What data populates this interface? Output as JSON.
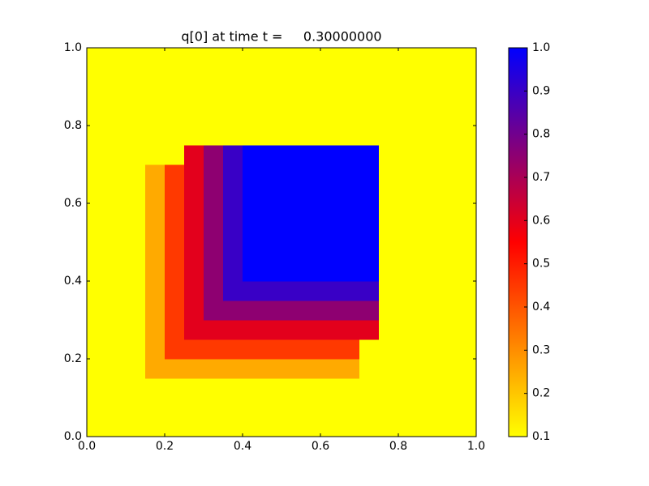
{
  "chart_data": {
    "type": "heatmap",
    "title": "q[0] at time t =     0.30000000",
    "xlim": [
      0.0,
      1.0
    ],
    "ylim": [
      0.0,
      1.0
    ],
    "xticks": [
      {
        "value": 0.0,
        "label": "0.0"
      },
      0.2,
      0.4,
      0.6,
      0.8,
      {
        "value": 1.0,
        "label": "1.0"
      }
    ],
    "yticks": [
      {
        "value": 0.0,
        "label": "0.0"
      },
      0.2,
      0.4,
      0.6,
      0.8,
      {
        "value": 1.0,
        "label": "1.0"
      }
    ],
    "values": [
      [
        0.1,
        0.1,
        0.1,
        0.1,
        0.1,
        0.1,
        0.1,
        0.1,
        0.1,
        0.1,
        0.1,
        0.1,
        0.1,
        0.1,
        0.1,
        0.1,
        0.1,
        0.1,
        0.1,
        0.1
      ],
      [
        0.1,
        0.1,
        0.1,
        0.1,
        0.1,
        0.1,
        0.1,
        0.1,
        0.1,
        0.1,
        0.1,
        0.1,
        0.1,
        0.1,
        0.1,
        0.1,
        0.1,
        0.1,
        0.1,
        0.1
      ],
      [
        0.1,
        0.1,
        0.1,
        0.1,
        0.1,
        0.1,
        0.1,
        0.1,
        0.1,
        0.1,
        0.1,
        0.1,
        0.1,
        0.1,
        0.1,
        0.1,
        0.1,
        0.1,
        0.1,
        0.1
      ],
      [
        0.1,
        0.1,
        0.1,
        0.25,
        0.25,
        0.25,
        0.25,
        0.25,
        0.25,
        0.25,
        0.25,
        0.25,
        0.25,
        0.25,
        0.1,
        0.1,
        0.1,
        0.1,
        0.1,
        0.1
      ],
      [
        0.1,
        0.1,
        0.1,
        0.25,
        0.45,
        0.45,
        0.45,
        0.45,
        0.45,
        0.45,
        0.45,
        0.45,
        0.45,
        0.45,
        0.1,
        0.1,
        0.1,
        0.1,
        0.1,
        0.1
      ],
      [
        0.1,
        0.1,
        0.1,
        0.25,
        0.45,
        0.6,
        0.6,
        0.6,
        0.6,
        0.6,
        0.6,
        0.6,
        0.6,
        0.6,
        0.6,
        0.1,
        0.1,
        0.1,
        0.1,
        0.1
      ],
      [
        0.1,
        0.1,
        0.1,
        0.25,
        0.45,
        0.6,
        0.75,
        0.75,
        0.75,
        0.75,
        0.75,
        0.75,
        0.75,
        0.75,
        0.75,
        0.1,
        0.1,
        0.1,
        0.1,
        0.1
      ],
      [
        0.1,
        0.1,
        0.1,
        0.25,
        0.45,
        0.6,
        0.75,
        0.9,
        0.9,
        0.9,
        0.9,
        0.9,
        0.9,
        0.9,
        0.9,
        0.1,
        0.1,
        0.1,
        0.1,
        0.1
      ],
      [
        0.1,
        0.1,
        0.1,
        0.25,
        0.45,
        0.6,
        0.75,
        0.9,
        1.0,
        1.0,
        1.0,
        1.0,
        1.0,
        1.0,
        1.0,
        0.1,
        0.1,
        0.1,
        0.1,
        0.1
      ],
      [
        0.1,
        0.1,
        0.1,
        0.25,
        0.45,
        0.6,
        0.75,
        0.9,
        1.0,
        1.0,
        1.0,
        1.0,
        1.0,
        1.0,
        1.0,
        0.1,
        0.1,
        0.1,
        0.1,
        0.1
      ],
      [
        0.1,
        0.1,
        0.1,
        0.25,
        0.45,
        0.6,
        0.75,
        0.9,
        1.0,
        1.0,
        1.0,
        1.0,
        1.0,
        1.0,
        1.0,
        0.1,
        0.1,
        0.1,
        0.1,
        0.1
      ],
      [
        0.1,
        0.1,
        0.1,
        0.25,
        0.45,
        0.6,
        0.75,
        0.9,
        1.0,
        1.0,
        1.0,
        1.0,
        1.0,
        1.0,
        1.0,
        0.1,
        0.1,
        0.1,
        0.1,
        0.1
      ],
      [
        0.1,
        0.1,
        0.1,
        0.25,
        0.45,
        0.6,
        0.75,
        0.9,
        1.0,
        1.0,
        1.0,
        1.0,
        1.0,
        1.0,
        1.0,
        0.1,
        0.1,
        0.1,
        0.1,
        0.1
      ],
      [
        0.1,
        0.1,
        0.1,
        0.25,
        0.45,
        0.6,
        0.75,
        0.9,
        1.0,
        1.0,
        1.0,
        1.0,
        1.0,
        1.0,
        1.0,
        0.1,
        0.1,
        0.1,
        0.1,
        0.1
      ],
      [
        0.1,
        0.1,
        0.1,
        0.1,
        0.1,
        0.6,
        0.75,
        0.9,
        1.0,
        1.0,
        1.0,
        1.0,
        1.0,
        1.0,
        1.0,
        0.1,
        0.1,
        0.1,
        0.1,
        0.1
      ],
      [
        0.1,
        0.1,
        0.1,
        0.1,
        0.1,
        0.1,
        0.1,
        0.1,
        0.1,
        0.1,
        0.1,
        0.1,
        0.1,
        0.1,
        0.1,
        0.1,
        0.1,
        0.1,
        0.1,
        0.1
      ],
      [
        0.1,
        0.1,
        0.1,
        0.1,
        0.1,
        0.1,
        0.1,
        0.1,
        0.1,
        0.1,
        0.1,
        0.1,
        0.1,
        0.1,
        0.1,
        0.1,
        0.1,
        0.1,
        0.1,
        0.1
      ],
      [
        0.1,
        0.1,
        0.1,
        0.1,
        0.1,
        0.1,
        0.1,
        0.1,
        0.1,
        0.1,
        0.1,
        0.1,
        0.1,
        0.1,
        0.1,
        0.1,
        0.1,
        0.1,
        0.1,
        0.1
      ],
      [
        0.1,
        0.1,
        0.1,
        0.1,
        0.1,
        0.1,
        0.1,
        0.1,
        0.1,
        0.1,
        0.1,
        0.1,
        0.1,
        0.1,
        0.1,
        0.1,
        0.1,
        0.1,
        0.1,
        0.1
      ],
      [
        0.1,
        0.1,
        0.1,
        0.1,
        0.1,
        0.1,
        0.1,
        0.1,
        0.1,
        0.1,
        0.1,
        0.1,
        0.1,
        0.1,
        0.1,
        0.1,
        0.1,
        0.1,
        0.1,
        0.1
      ]
    ],
    "colormap": [
      "#ffff00",
      "#ff0000",
      "#0000ff"
    ],
    "clim": [
      0.1,
      1.0
    ],
    "cticks": [
      0.1,
      0.2,
      0.3,
      0.4,
      0.5,
      0.6,
      0.7,
      0.8,
      0.9,
      {
        "value": 1.0,
        "label": "1.0"
      }
    ]
  }
}
